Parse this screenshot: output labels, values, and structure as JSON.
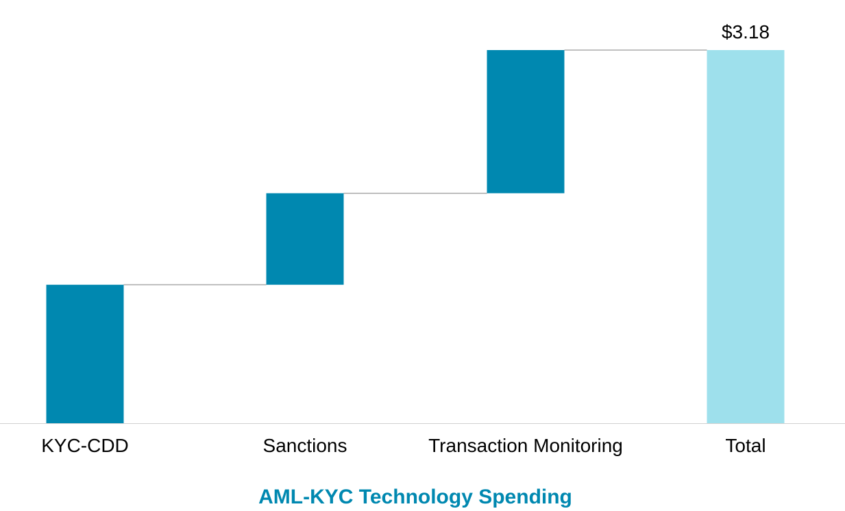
{
  "chart_data": {
    "type": "waterfall",
    "title": "AML-KYC Technology Spending",
    "categories": [
      "KYC-CDD",
      "Sanctions",
      "Transaction Monitoring",
      "Total"
    ],
    "values": [
      1.18,
      0.78,
      1.22,
      3.18
    ],
    "is_total": [
      false,
      false,
      false,
      true
    ],
    "data_labels": [
      "",
      "",
      "",
      "$3.18"
    ],
    "xlabel": "",
    "ylabel": "",
    "ylim": [
      0,
      3.18
    ],
    "grid": false,
    "colors": {
      "increment": "#0088B0",
      "total": "#9EE0EC",
      "connector": "#AAAAAA",
      "title": "#0088B0",
      "axis": "#D0D0D0"
    }
  }
}
